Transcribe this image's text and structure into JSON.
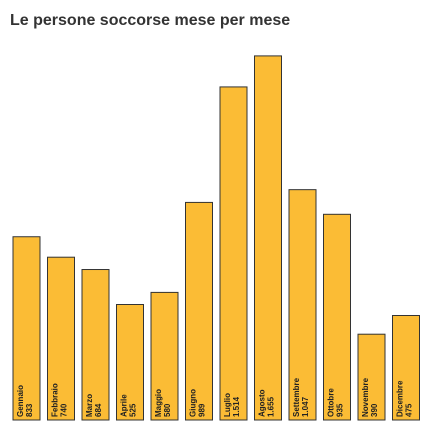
{
  "chart_data": {
    "type": "bar",
    "title": "Le persone soccorse mese per mese",
    "categories": [
      "Gennaio",
      "Febbraio",
      "Marzo",
      "Aprile",
      "Maggio",
      "Giugno",
      "Luglio",
      "Agosto",
      "Settembre",
      "Ottobre",
      "Novembre",
      "Dicembre"
    ],
    "values": [
      833,
      740,
      684,
      525,
      580,
      989,
      1514,
      1655,
      1047,
      935,
      390,
      475
    ],
    "value_labels": [
      "833",
      "740",
      "684",
      "525",
      "580",
      "989",
      "1.514",
      "1.655",
      "1.047",
      "935",
      "390",
      "475"
    ],
    "color": "#fbbc35"
  }
}
